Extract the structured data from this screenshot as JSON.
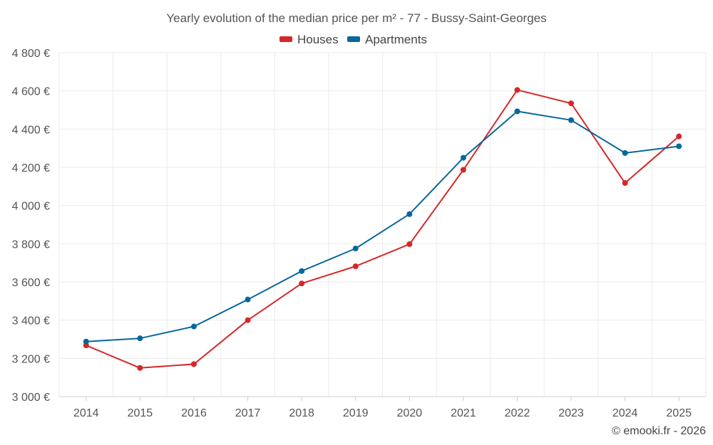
{
  "chart_data": {
    "type": "line",
    "title": "Yearly evolution of the median price per m² - 77 - Bussy-Saint-Georges",
    "categories": [
      "2014",
      "2015",
      "2016",
      "2017",
      "2018",
      "2019",
      "2020",
      "2021",
      "2022",
      "2023",
      "2024",
      "2025"
    ],
    "y_ticks": [
      "3 000 €",
      "3 200 €",
      "3 400 €",
      "3 600 €",
      "3 800 €",
      "4 000 €",
      "4 200 €",
      "4 400 €",
      "4 600 €",
      "4 800 €"
    ],
    "ylim": [
      3000,
      4800
    ],
    "xlabel": "",
    "ylabel": "",
    "grid": true,
    "legend_position": "top-center",
    "series": [
      {
        "name": "Houses",
        "color": "#d62728",
        "values": [
          3268,
          3150,
          3170,
          3400,
          3592,
          3682,
          3798,
          4187,
          4605,
          4535,
          4118,
          4362
        ]
      },
      {
        "name": "Apartments",
        "color": "#08679c",
        "values": [
          3288,
          3305,
          3367,
          3508,
          3657,
          3775,
          3955,
          4250,
          4493,
          4447,
          4275,
          4310
        ]
      }
    ],
    "credit": "© emooki.fr - 2026"
  }
}
